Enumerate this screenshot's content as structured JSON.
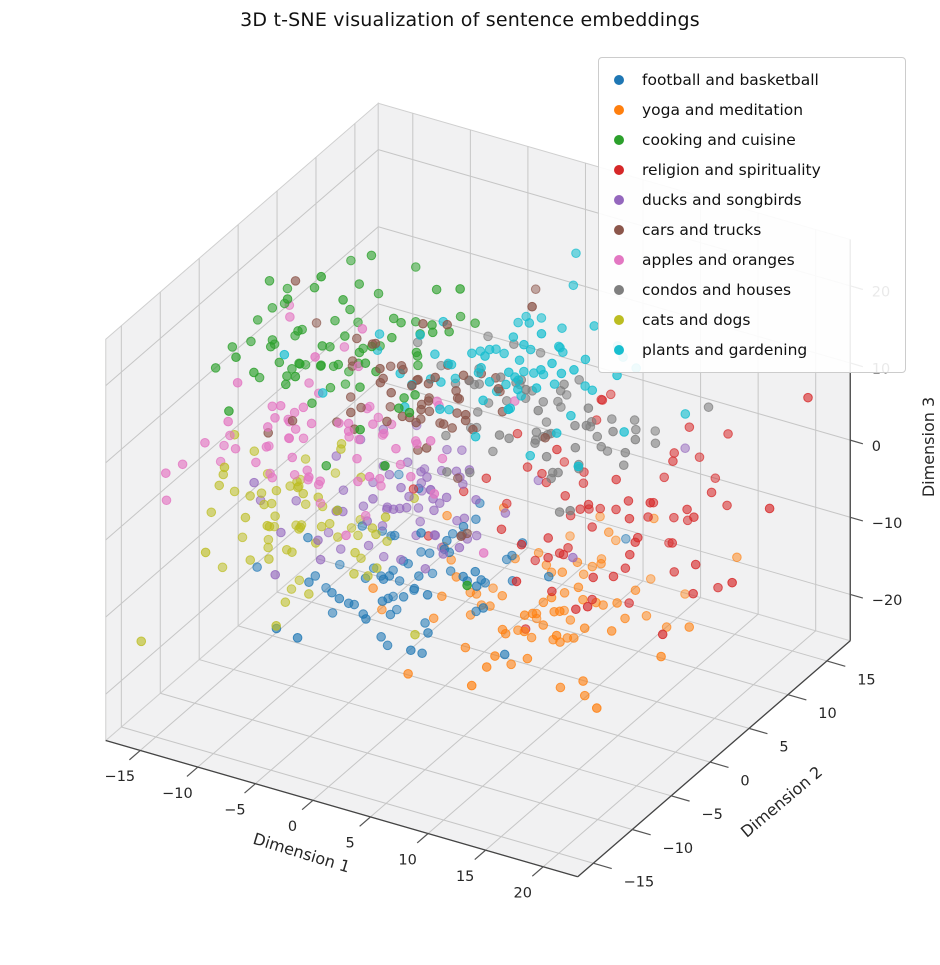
{
  "chart_data": {
    "type": "scatter",
    "projection": "3d",
    "title": "3D t-SNE visualization of sentence embeddings",
    "xlabel": "Dimension 1",
    "ylabel": "Dimension 2",
    "zlabel": "Dimension 3",
    "xlim": [
      -18,
      23
    ],
    "ylim": [
      -17,
      18
    ],
    "zlim": [
      -26,
      26
    ],
    "xticks": [
      -15,
      -10,
      -5,
      0,
      5,
      10,
      15,
      20
    ],
    "yticks": [
      -15,
      -10,
      -5,
      0,
      5,
      10,
      15
    ],
    "zticks": [
      -20,
      -10,
      0,
      10,
      20
    ],
    "legend_position": "upper right",
    "grid": true,
    "view": {
      "elev": 30,
      "azim": -60
    },
    "marker": {
      "size": 4.3,
      "alpha": 0.8
    },
    "style": {
      "pane_color": "#f1f1f2",
      "grid_color": "#c6c6c6",
      "pane_edge_color": "#cfcfcf",
      "axis_line_color": "#444444",
      "tick_color": "#555555",
      "text_color": "#262626",
      "legend_border": "#cccccc"
    },
    "series": [
      {
        "name": "football and basketball",
        "color": "#1f77b4",
        "center": [
          -3,
          1,
          -15
        ],
        "spread": [
          4,
          3.5,
          3
        ],
        "count": 75,
        "seed": 11
      },
      {
        "name": "yoga and meditation",
        "color": "#ff7f0e",
        "center": [
          6,
          5,
          -18
        ],
        "spread": [
          5,
          4.5,
          2.5
        ],
        "count": 80,
        "seed": 22
      },
      {
        "name": "cooking and cuisine",
        "color": "#2ca02c",
        "center": [
          -10,
          2,
          12
        ],
        "spread": [
          5,
          4,
          3.5
        ],
        "count": 80,
        "seed": 33
      },
      {
        "name": "religion and spirituality",
        "color": "#d62728",
        "center": [
          9,
          8,
          -8
        ],
        "spread": [
          5,
          4,
          3.5
        ],
        "count": 75,
        "seed": 44
      },
      {
        "name": "ducks and songbirds",
        "color": "#9467bd",
        "center": [
          -6,
          4,
          -8
        ],
        "spread": [
          4,
          3.5,
          3
        ],
        "count": 70,
        "seed": 55
      },
      {
        "name": "cars and trucks",
        "color": "#8c564b",
        "center": [
          -3,
          1,
          10
        ],
        "spread": [
          3.5,
          3,
          3.5
        ],
        "count": 65,
        "seed": 66
      },
      {
        "name": "apples and oranges",
        "color": "#e377c2",
        "center": [
          -8,
          -2,
          4
        ],
        "spread": [
          4.5,
          3.5,
          4
        ],
        "count": 75,
        "seed": 77
      },
      {
        "name": "condos and houses",
        "color": "#7f7f7f",
        "center": [
          3.5,
          6,
          5
        ],
        "spread": [
          4.5,
          3.5,
          3
        ],
        "count": 70,
        "seed": 88
      },
      {
        "name": "cats and dogs",
        "color": "#bcbd22",
        "center": [
          -12,
          -1,
          -10
        ],
        "spread": [
          4,
          3,
          3.5
        ],
        "count": 70,
        "seed": 99
      },
      {
        "name": "plants and gardening",
        "color": "#17becf",
        "center": [
          4,
          4,
          13
        ],
        "spread": [
          4.5,
          3.5,
          3
        ],
        "count": 75,
        "seed": 110
      }
    ]
  }
}
